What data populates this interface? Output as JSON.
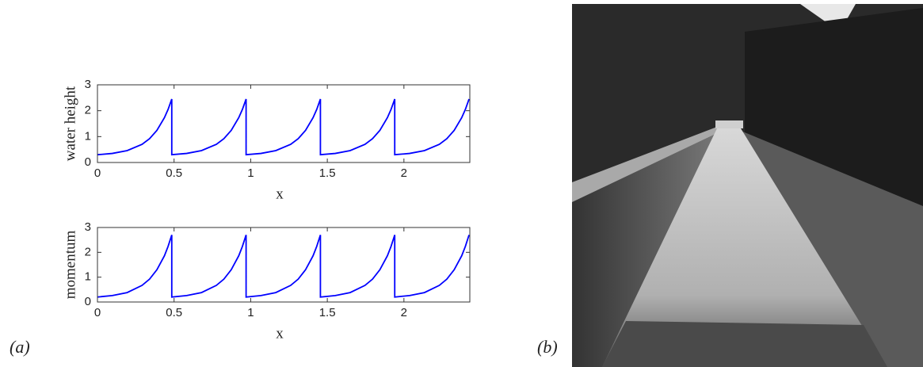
{
  "panel_labels": [
    "(a)",
    "(b)"
  ],
  "chart_data": [
    {
      "type": "line",
      "y_label": "water height",
      "x_label": "x",
      "x": [
        0,
        0.097,
        0.194,
        0.291,
        0.34,
        0.388,
        0.437,
        0.461,
        0.485,
        0.485,
        0.582,
        0.679,
        0.776,
        0.825,
        0.873,
        0.922,
        0.946,
        0.97,
        0.97,
        1.067,
        1.164,
        1.261,
        1.31,
        1.358,
        1.407,
        1.431,
        1.455,
        1.455,
        1.552,
        1.649,
        1.746,
        1.795,
        1.843,
        1.892,
        1.916,
        1.94,
        1.94,
        2.037,
        2.134,
        2.231,
        2.28,
        2.328,
        2.377,
        2.401,
        2.425
      ],
      "series": [
        {
          "color": "#0000ff",
          "values": [
            0.3,
            0.35,
            0.46,
            0.7,
            0.92,
            1.24,
            1.73,
            2.05,
            2.45,
            0.3,
            0.35,
            0.46,
            0.7,
            0.92,
            1.24,
            1.73,
            2.05,
            2.45,
            0.3,
            0.35,
            0.46,
            0.7,
            0.92,
            1.24,
            1.73,
            2.05,
            2.45,
            0.3,
            0.35,
            0.46,
            0.7,
            0.92,
            1.24,
            1.73,
            2.05,
            2.45,
            0.3,
            0.35,
            0.46,
            0.7,
            0.92,
            1.24,
            1.73,
            2.05,
            2.45
          ]
        }
      ],
      "xlim": [
        0,
        2.43
      ],
      "ylim": [
        0,
        3
      ],
      "xticks": [
        0,
        0.5,
        1,
        1.5,
        2
      ],
      "yticks": [
        0,
        1,
        2,
        3
      ]
    },
    {
      "type": "line",
      "y_label": "momentum",
      "x_label": "x",
      "x": [
        0,
        0.097,
        0.194,
        0.291,
        0.34,
        0.388,
        0.437,
        0.461,
        0.485,
        0.485,
        0.582,
        0.679,
        0.776,
        0.825,
        0.873,
        0.922,
        0.946,
        0.97,
        0.97,
        1.067,
        1.164,
        1.261,
        1.31,
        1.358,
        1.407,
        1.431,
        1.455,
        1.455,
        1.552,
        1.649,
        1.746,
        1.795,
        1.843,
        1.892,
        1.916,
        1.94,
        1.94,
        2.037,
        2.134,
        2.231,
        2.28,
        2.328,
        2.377,
        2.401,
        2.425
      ],
      "series": [
        {
          "color": "#0000ff",
          "values": [
            0.2,
            0.26,
            0.38,
            0.67,
            0.92,
            1.3,
            1.86,
            2.24,
            2.7,
            0.2,
            0.26,
            0.38,
            0.67,
            0.92,
            1.3,
            1.86,
            2.24,
            2.7,
            0.2,
            0.26,
            0.38,
            0.67,
            0.92,
            1.3,
            1.86,
            2.24,
            2.7,
            0.2,
            0.26,
            0.38,
            0.67,
            0.92,
            1.3,
            1.86,
            2.24,
            2.7,
            0.2,
            0.26,
            0.38,
            0.67,
            0.92,
            1.3,
            1.86,
            2.24,
            2.7
          ]
        }
      ],
      "xlim": [
        0,
        2.43
      ],
      "ylim": [
        0,
        3
      ],
      "xticks": [
        0,
        0.5,
        1,
        1.5,
        2
      ],
      "yticks": [
        0,
        1,
        2,
        3
      ]
    }
  ]
}
